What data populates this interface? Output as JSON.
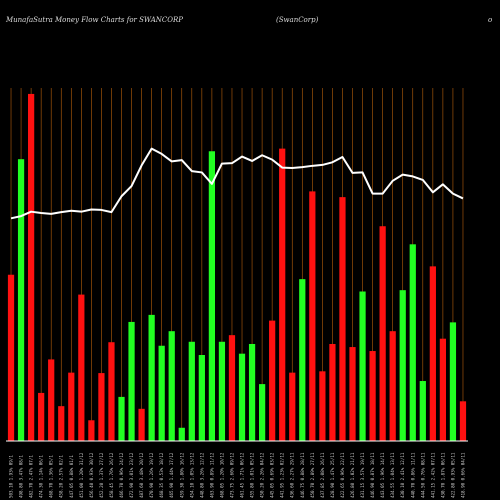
{
  "chart_data": {
    "type": "bar",
    "title": "MunafaSutra  Money Flow  Charts for SWANCORP",
    "subtitle": "(SwanCorp)",
    "corner_text": "o",
    "colors": {
      "background": "#000000",
      "up": "#22ff22",
      "down": "#ff1111",
      "grid": "#b8600b",
      "line": "#ffffff",
      "text": "#dddddd"
    },
    "ylim": [
      0,
      100
    ],
    "grid": true,
    "categories": [
      "503.10 1.93% 09/1",
      "498.80 3.47% 08/1",
      "482.70 2.47% 07/1",
      "474.30 1.14% 06/1",
      "468.70 1.36% 05/1",
      "458.20 2.57% 02/1",
      "447.05 0.88% 01/1",
      "451.00 1.20% 31/12",
      "456.40 0.93% 30/12",
      "452.20 1.37% 27/12",
      "458.45 1.76% 26/12",
      "466.70 0.96% 24/12",
      "472.90 3.01% 23/12",
      "487.60 3.48% 20/12",
      "470.90 1.26% 19/12",
      "468.35 0.53% 18/12",
      "465.90 1.44% 17/12",
      "459.30 1.80% 16/12",
      "454.10 1.05% 13/12",
      "448.80 3.26% 12/12",
      "463.90 0.89% 11/12",
      "468.05 1.20% 10/12",
      "473.75 2.60% 09/12",
      "461.45 1.71% 06/12",
      "455.80 1.01% 05/12",
      "450.20 2.26% 04/12",
      "445.05 0.69% 03/12",
      "441.95 1.23% 02/12",
      "436.60 2.27% 29/11",
      "446.75 0.88% 28/11",
      "450.70 2.89% 27/11",
      "437.85 2.08% 26/11",
      "428.90 1.47% 25/11",
      "422.65 0.96% 22/11",
      "426.80 1.02% 21/11",
      "431.15 3.57% 19/11",
      "446.90 0.87% 18/11",
      "443.05 1.96% 14/11",
      "434.55 1.04% 13/11",
      "430.10 2.41% 12/11",
      "440.70 0.86% 11/11",
      "444.50 0.76% 08/11",
      "441.15 2.42% 07/11",
      "430.70 1.87% 06/11",
      "422.80 0.93% 05/11",
      "418.90 0.66% 04/11"
    ],
    "series": [
      {
        "type": "bar",
        "values": [
          37.7,
          63.9,
          78.7,
          10.9,
          18.5,
          7.9,
          15.5,
          33.2,
          4.7,
          15.4,
          22.4,
          10.0,
          27.0,
          7.3,
          28.6,
          21.6,
          24.9,
          3.0,
          22.5,
          19.5,
          65.7,
          22.5,
          24.0,
          19.8,
          22.0,
          12.9,
          27.3,
          66.3,
          15.5,
          36.7,
          56.6,
          15.8,
          22.0,
          55.3,
          21.3,
          33.9,
          20.4,
          48.7,
          24.9,
          34.2,
          44.6,
          13.6,
          39.6,
          23.2,
          26.9,
          9.0
        ],
        "colors": [
          "down",
          "up",
          "down",
          "down",
          "down",
          "down",
          "down",
          "down",
          "down",
          "down",
          "down",
          "up",
          "up",
          "down",
          "up",
          "up",
          "up",
          "up",
          "up",
          "up",
          "up",
          "up",
          "down",
          "up",
          "up",
          "up",
          "down",
          "down",
          "down",
          "up",
          "down",
          "down",
          "down",
          "down",
          "down",
          "up",
          "down",
          "down",
          "down",
          "up",
          "up",
          "up",
          "down",
          "down",
          "up",
          "down"
        ]
      },
      {
        "type": "line",
        "values": [
          50.5,
          51.0,
          52.0,
          51.7,
          51.5,
          51.9,
          52.2,
          52.0,
          52.5,
          52.4,
          51.9,
          55.5,
          57.8,
          62.5,
          66.3,
          65.1,
          63.4,
          63.7,
          61.2,
          60.9,
          58.3,
          62.9,
          63.0,
          64.5,
          63.5,
          64.8,
          63.8,
          62.0,
          61.9,
          62.1,
          62.4,
          62.6,
          63.2,
          64.4,
          60.8,
          60.9,
          56.1,
          56.1,
          59.0,
          60.4,
          60.0,
          59.2,
          56.4,
          58.2,
          56.1,
          55.0
        ]
      }
    ]
  }
}
